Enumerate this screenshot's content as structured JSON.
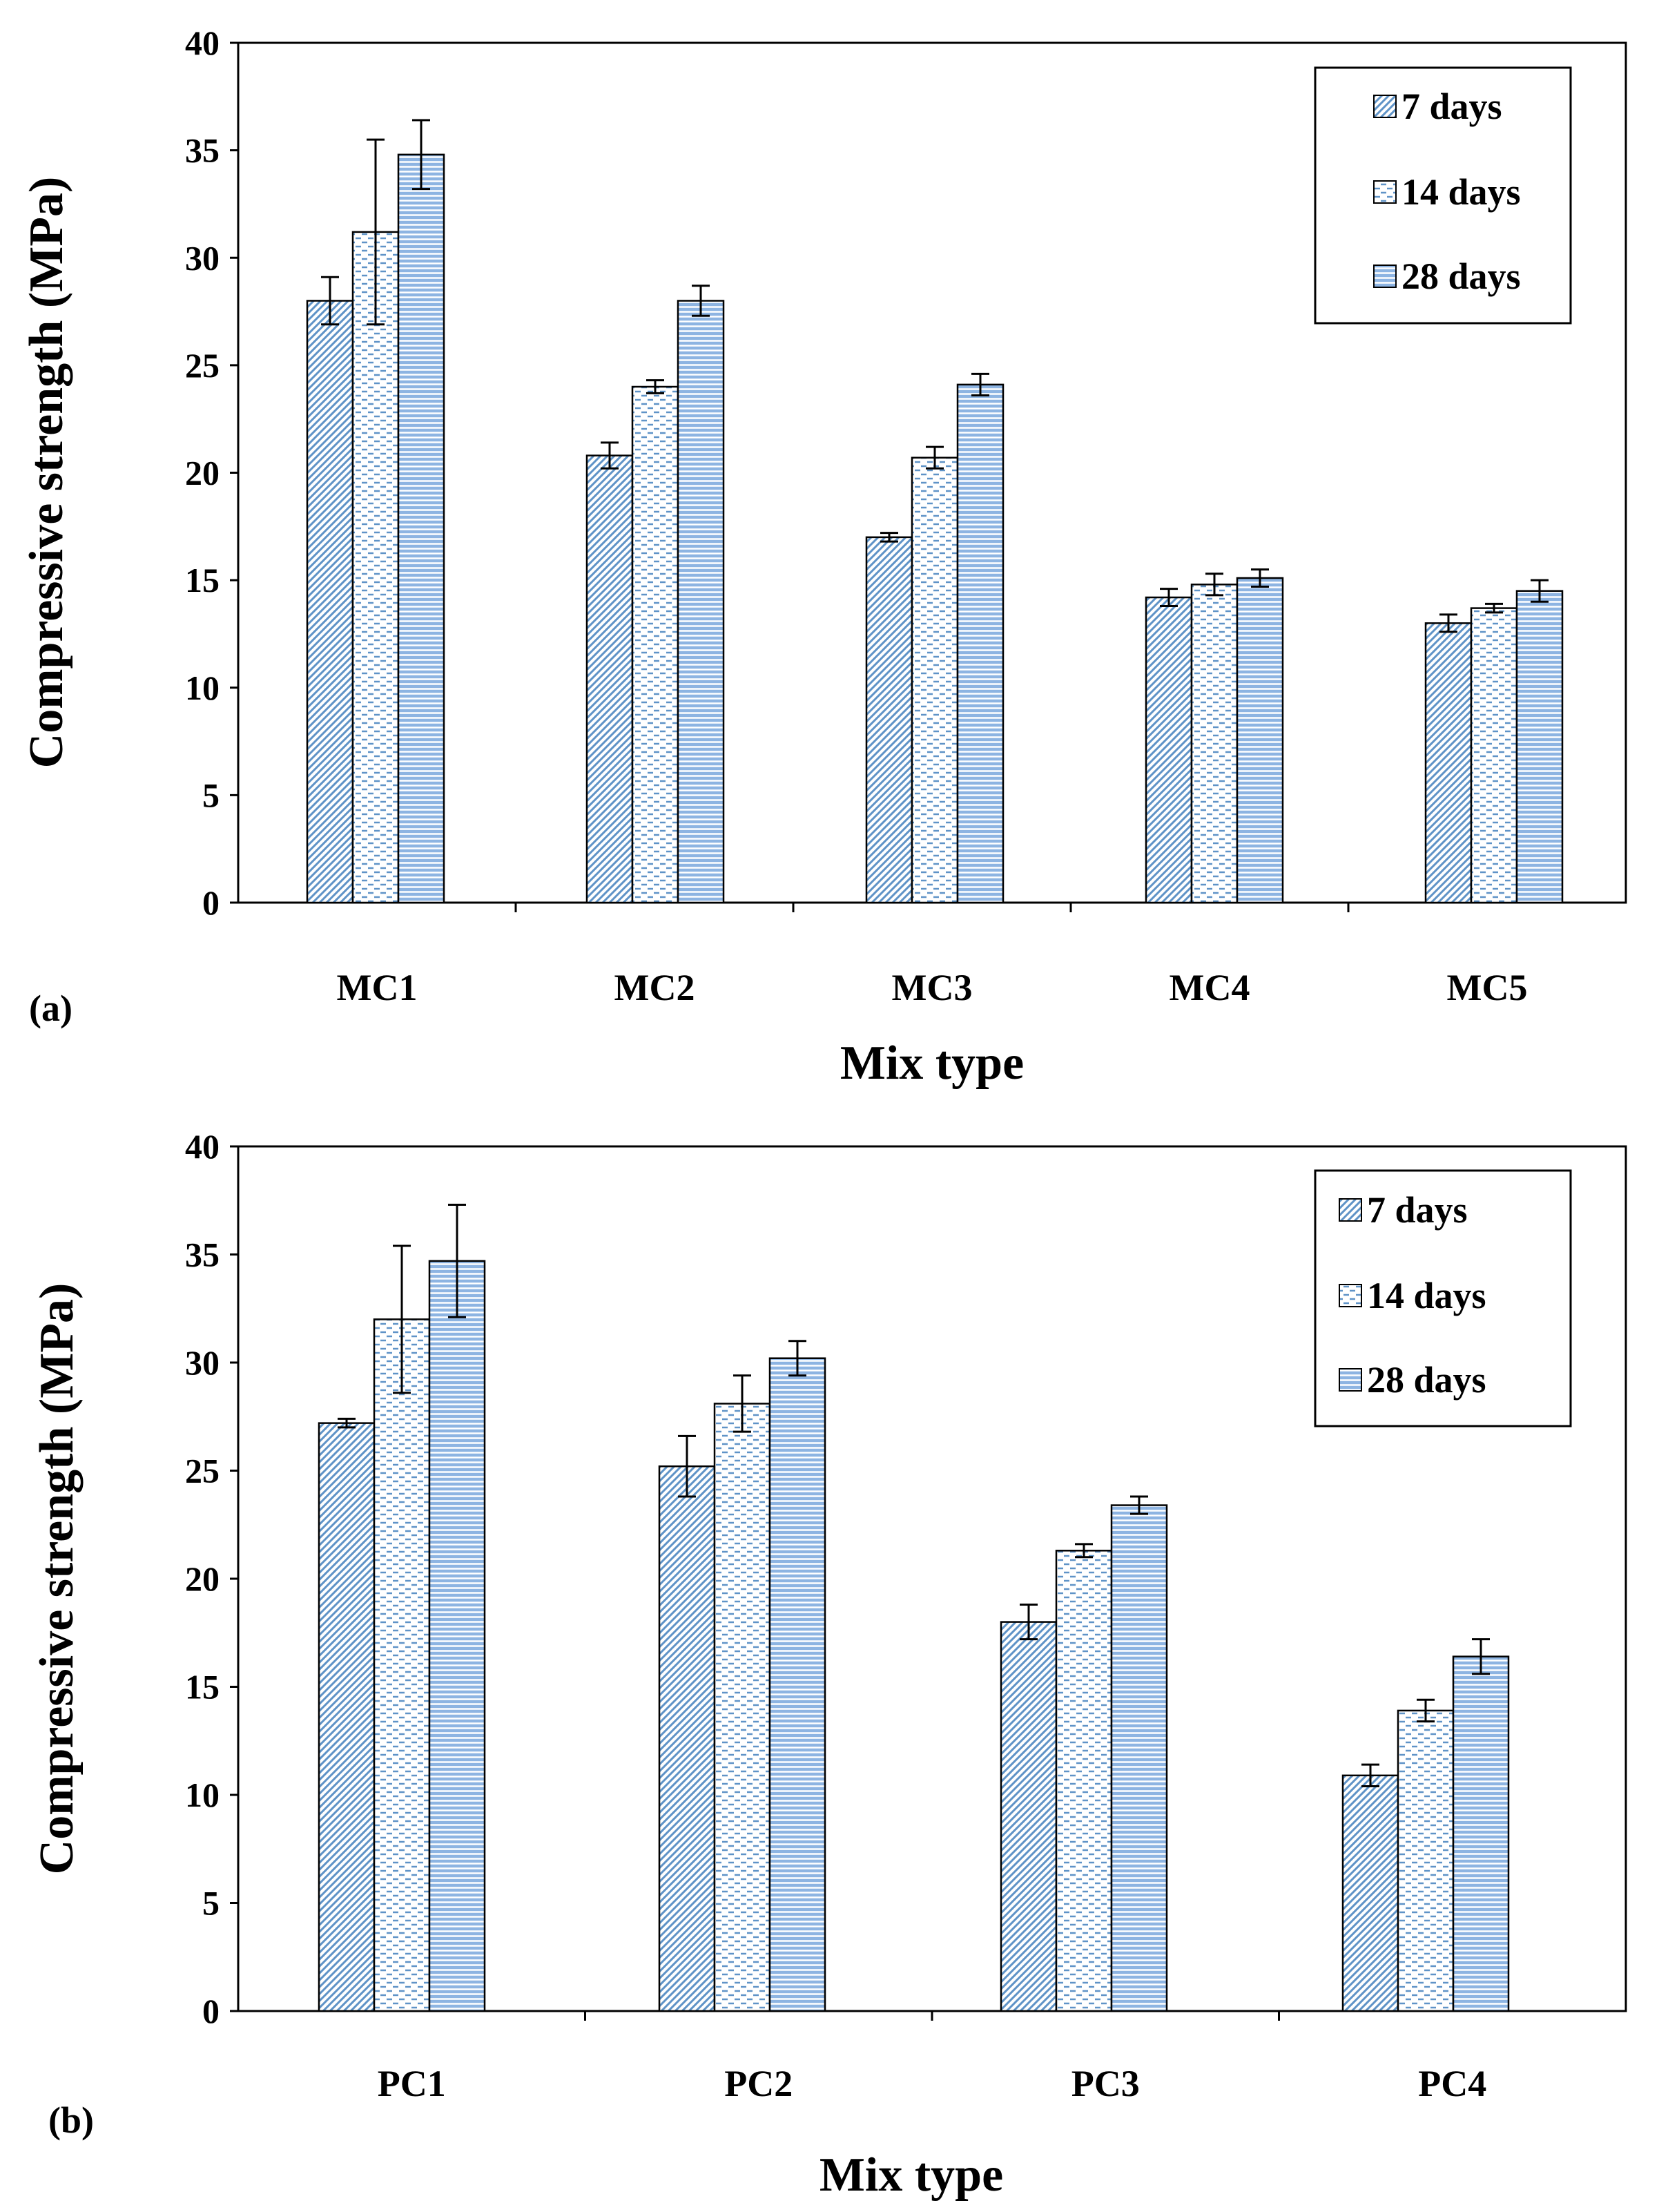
{
  "chart_data": [
    {
      "type": "bar",
      "panel_label": "(a)",
      "xlabel": "Mix type",
      "ylabel": "Compressive strength (MPa)",
      "ylim": [
        0,
        40
      ],
      "yticks": [
        0,
        5,
        10,
        15,
        20,
        25,
        30,
        35,
        40
      ],
      "legend_position": "top-right",
      "categories": [
        "MC1",
        "MC2",
        "MC3",
        "MC4",
        "MC5"
      ],
      "series": [
        {
          "name": "7 days",
          "pattern": "diagonal",
          "values": [
            28.0,
            20.8,
            17.0,
            14.2,
            13.0
          ],
          "errors": [
            1.1,
            0.6,
            0.2,
            0.4,
            0.4
          ]
        },
        {
          "name": "14 days",
          "pattern": "dashed",
          "values": [
            31.2,
            24.0,
            20.7,
            14.8,
            13.7
          ],
          "errors": [
            4.3,
            0.3,
            0.5,
            0.5,
            0.2
          ]
        },
        {
          "name": "28 days",
          "pattern": "horizontal",
          "values": [
            34.8,
            28.0,
            24.1,
            15.1,
            14.5
          ],
          "errors": [
            1.6,
            0.7,
            0.5,
            0.4,
            0.5
          ]
        }
      ]
    },
    {
      "type": "bar",
      "panel_label": "(b)",
      "xlabel": "Mix type",
      "ylabel": "Compressive strength (MPa)",
      "ylim": [
        0,
        40
      ],
      "yticks": [
        0,
        5,
        10,
        15,
        20,
        25,
        30,
        35,
        40
      ],
      "legend_position": "top-right",
      "categories": [
        "PC1",
        "PC2",
        "PC3",
        "PC4"
      ],
      "series": [
        {
          "name": "7 days",
          "pattern": "diagonal",
          "values": [
            27.2,
            25.2,
            18.0,
            10.9
          ],
          "errors": [
            0.2,
            1.4,
            0.8,
            0.5
          ]
        },
        {
          "name": "14 days",
          "pattern": "dashed",
          "values": [
            32.0,
            28.1,
            21.3,
            13.9
          ],
          "errors": [
            3.4,
            1.3,
            0.3,
            0.5
          ]
        },
        {
          "name": "28 days",
          "pattern": "horizontal",
          "values": [
            34.7,
            30.2,
            23.4,
            16.4
          ],
          "errors": [
            2.6,
            0.8,
            0.4,
            0.8
          ]
        }
      ]
    }
  ],
  "colors": {
    "bar_fill": "#dbe7f5",
    "bar_stroke": "#000000",
    "hatch_diagonal": "#5f93c7",
    "hatch_dashed": "#5f93c7",
    "hatch_horizontal": "#4f86c0",
    "solid_fill": "#8db4e2",
    "axis": "#000000"
  }
}
